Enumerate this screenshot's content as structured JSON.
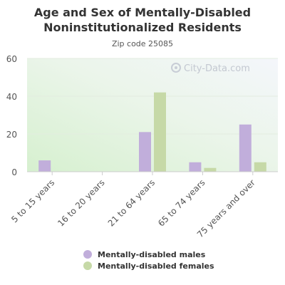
{
  "chart_data": {
    "type": "bar",
    "title_line1": "Age and Sex of Mentally-Disabled",
    "title_line2": "Noninstitutionalized Residents",
    "subtitle": "Zip code 25085",
    "watermark": "City-Data.com",
    "categories": [
      "5 to 15 years",
      "16 to 20 years",
      "21 to 64 years",
      "65 to 74 years",
      "75 years and over"
    ],
    "series": [
      {
        "name": "Mentally-disabled males",
        "color": "#c1aedb",
        "values": [
          6,
          0,
          21,
          5,
          25
        ]
      },
      {
        "name": "Mentally-disabled females",
        "color": "#c6d9a7",
        "values": [
          0,
          0,
          42,
          2,
          5
        ]
      }
    ],
    "ylim": [
      0,
      60
    ],
    "yticks": [
      0,
      20,
      40,
      60
    ],
    "grid": true,
    "legend_position": "bottom"
  }
}
